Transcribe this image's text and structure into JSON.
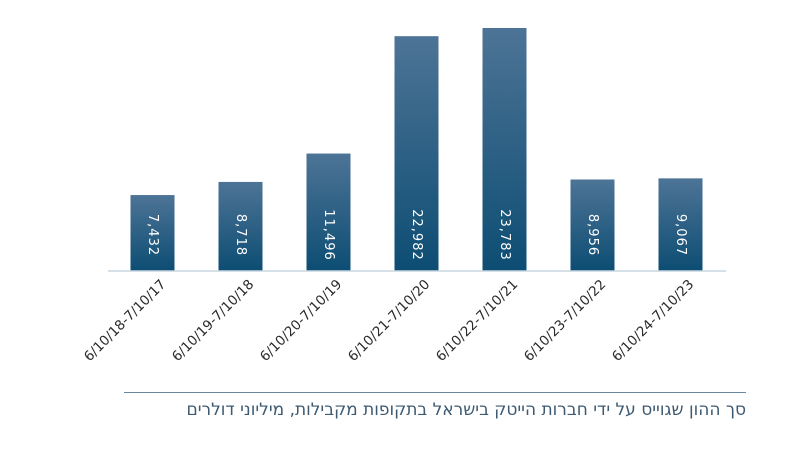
{
  "chart_data": {
    "type": "bar",
    "categories": [
      "6/10/18-7/10/17",
      "6/10/19-7/10/18",
      "6/10/20-7/10/19",
      "6/10/21-7/10/20",
      "6/10/22-7/10/21",
      "6/10/23-7/10/22",
      "6/10/24-7/10/23"
    ],
    "values": [
      7432,
      8718,
      11496,
      22982,
      23783,
      8956,
      9067
    ],
    "value_labels": [
      "7,432",
      "8,718",
      "11,496",
      "22,982",
      "23,783",
      "8,956",
      "9,067"
    ],
    "title": "סך ההון שגוייס על ידי חברות הייטק בישראל בתקופות מקבילות, מיליוני דולרים",
    "xlabel": "",
    "ylabel": "",
    "ylim": [
      0,
      24500
    ],
    "grid": false,
    "legend": "none",
    "colors": {
      "bar_top": "#4d7496",
      "bar_bottom": "#0d4d73",
      "axis": "#c9d6e0"
    }
  }
}
